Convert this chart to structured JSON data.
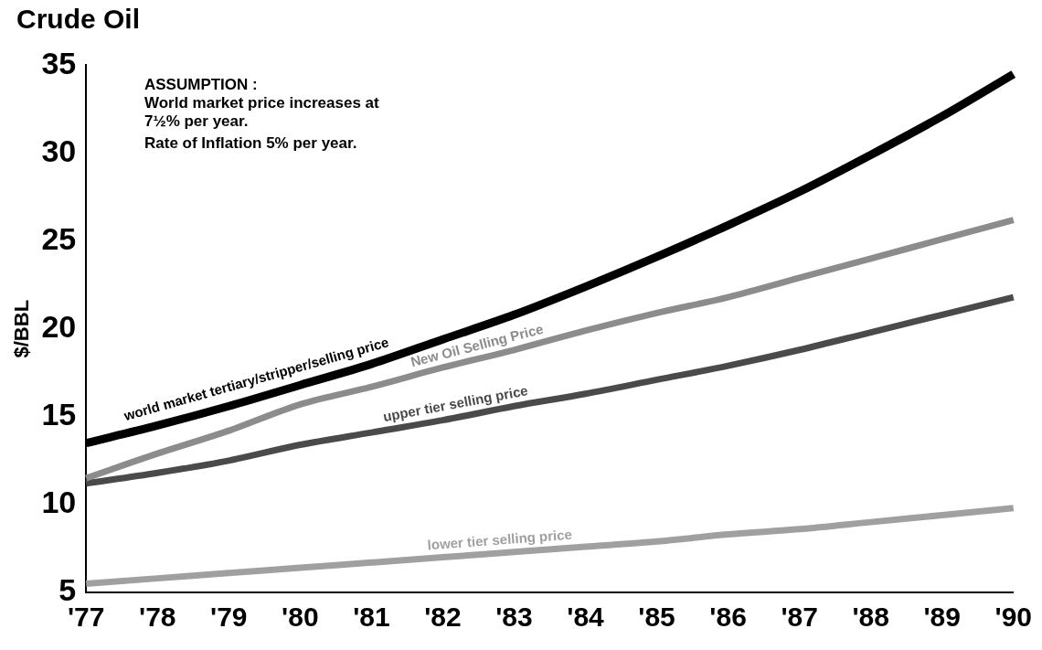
{
  "chart_data": {
    "type": "line",
    "title": "Crude Oil",
    "ylabel": "$/BBL",
    "categories": [
      "'77",
      "'78",
      "'79",
      "'80",
      "'81",
      "'82",
      "'83",
      "'84",
      "'85",
      "'86",
      "'87",
      "'88",
      "'89",
      "'90"
    ],
    "series": [
      {
        "name": "world market tertiary/stripper/selling price",
        "color": "#000000",
        "values": [
          13.5,
          14.5,
          15.6,
          16.8,
          18.0,
          19.4,
          20.8,
          22.4,
          24.1,
          25.9,
          27.8,
          29.9,
          32.1,
          34.5
        ]
      },
      {
        "name": "New Oil Selling Price",
        "color": "#8c8c8c",
        "values": [
          11.5,
          12.9,
          14.2,
          15.7,
          16.7,
          17.8,
          18.8,
          19.9,
          20.9,
          21.8,
          22.9,
          24.0,
          25.1,
          26.2
        ]
      },
      {
        "name": "upper tier selling price",
        "color": "#4a4a4a",
        "values": [
          11.2,
          11.8,
          12.5,
          13.4,
          14.1,
          14.8,
          15.6,
          16.3,
          17.1,
          17.9,
          18.8,
          19.8,
          20.8,
          21.8
        ]
      },
      {
        "name": "lower tier selling price",
        "color": "#a0a0a0",
        "values": [
          5.5,
          5.8,
          6.1,
          6.4,
          6.7,
          7.0,
          7.3,
          7.6,
          7.9,
          8.3,
          8.6,
          9.0,
          9.4,
          9.8
        ]
      }
    ],
    "ylim": [
      5,
      35
    ],
    "yticks": [
      5,
      10,
      15,
      20,
      25,
      30,
      35
    ],
    "grid": false,
    "legend": false,
    "marker": "none",
    "line_style": "solid",
    "annotations": [
      "ASSUMPTION :",
      "World market price increases at 7½% per year.",
      "Rate of Inflation 5% per year."
    ]
  }
}
